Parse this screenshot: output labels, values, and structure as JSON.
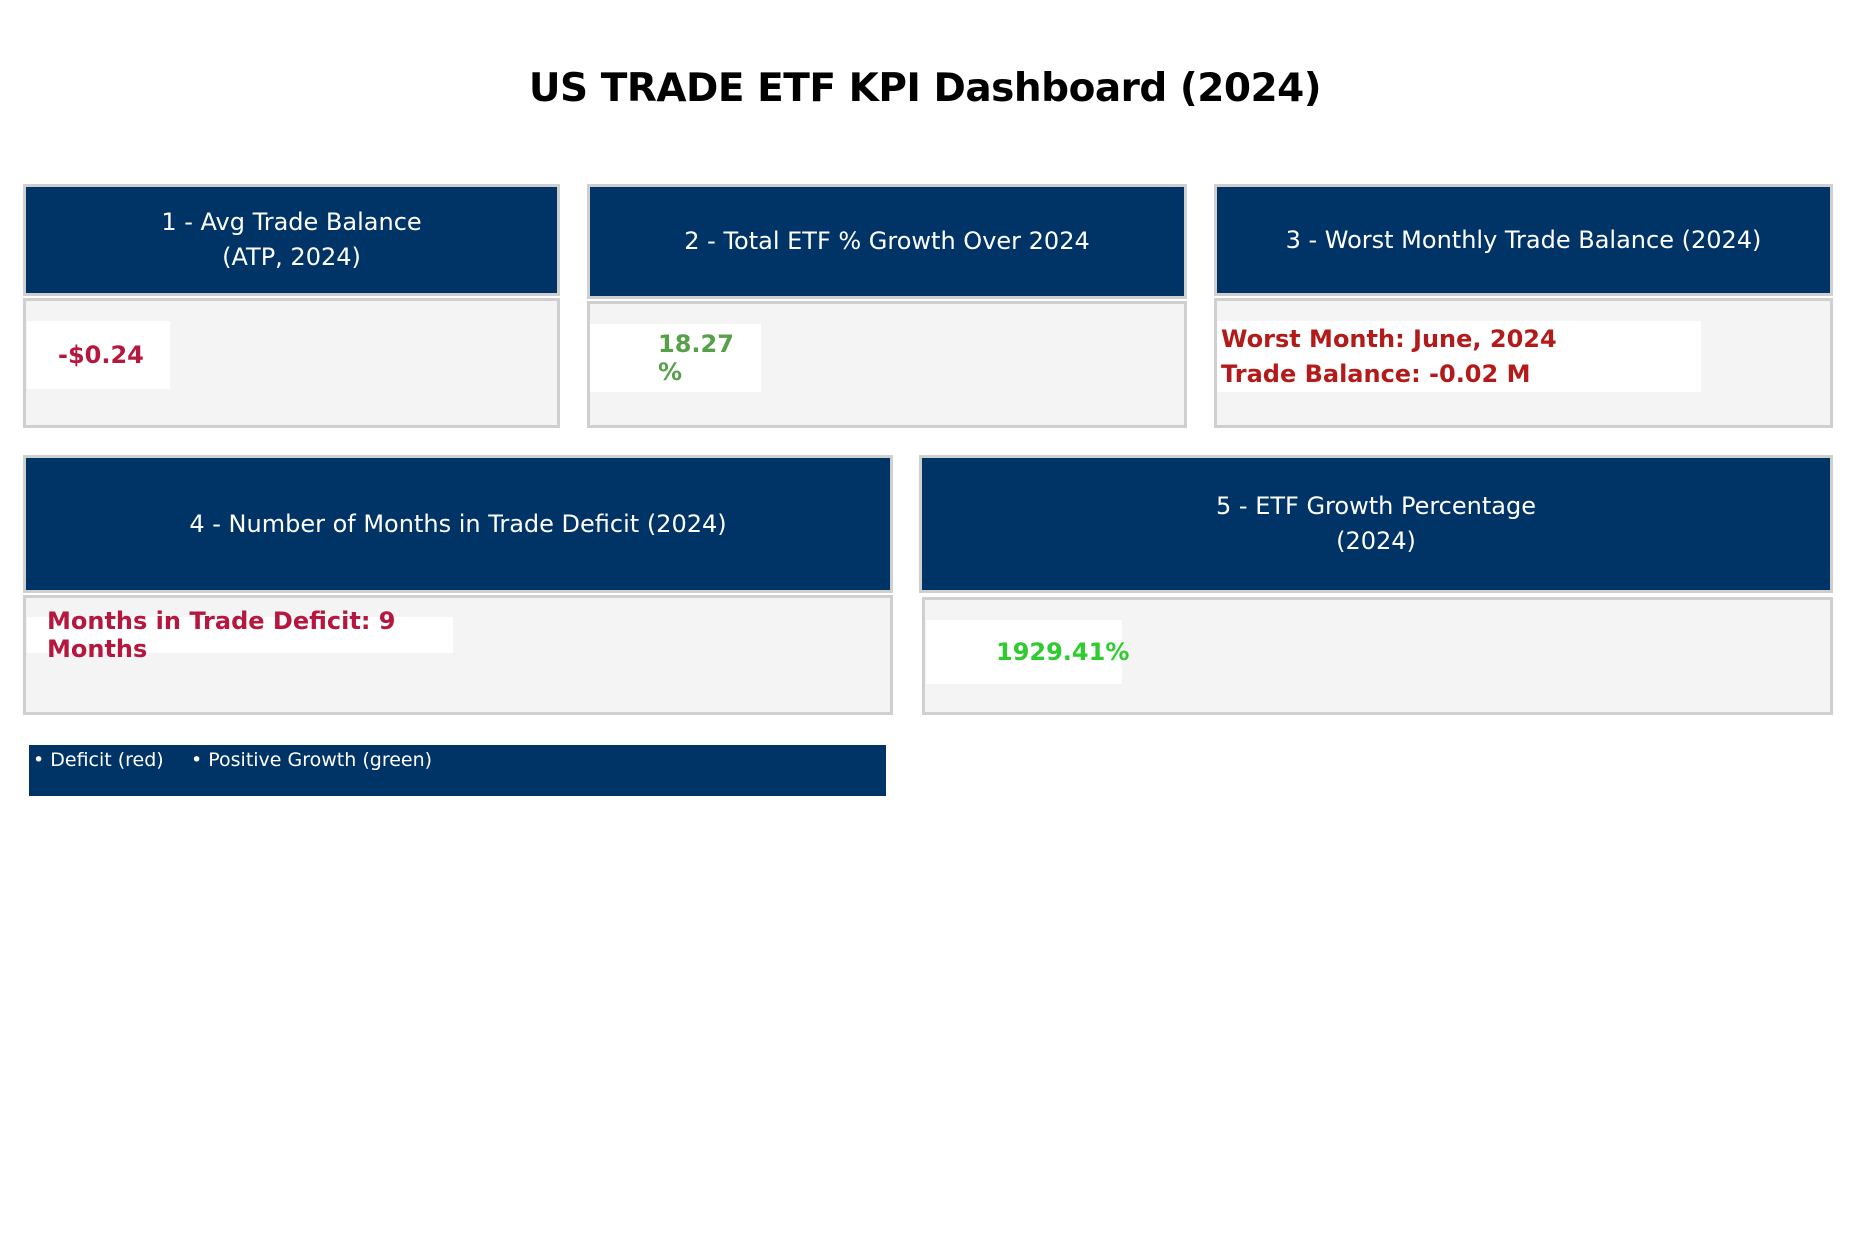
{
  "dashboard": {
    "title": "US TRADE ETF KPI Dashboard (2024)"
  },
  "kpis": [
    {
      "header": "1 - Avg Trade Balance\n(ATP, 2024)",
      "value": "-$0.24",
      "value_color": "#b5173e"
    },
    {
      "header": "2 - Total ETF % Growth Over 2024",
      "value": "18.27 %",
      "value_color": "#56a04a"
    },
    {
      "header": "3 - Worst Monthly Trade Balance (2024)",
      "value_line1": "Worst Month: June, 2024",
      "value_line2": "Trade Balance: -0.02 M",
      "value_color": "#b31b1b"
    },
    {
      "header": "4 - Number of Months in Trade Deficit (2024)",
      "value": "Months in Trade Deficit: 9 Months",
      "value_color": "#b5173e"
    },
    {
      "header": "5 - ETF Growth Percentage\n(2024)",
      "value": "1929.41%",
      "value_color": "#2ecc2e"
    }
  ],
  "legend": {
    "items": [
      {
        "label": "• Deficit (red)"
      },
      {
        "label": "• Positive Growth (green)"
      }
    ]
  },
  "colors": {
    "header_bg": "#003366",
    "panel_bg": "#f4f4f4",
    "panel_border": "#cfcfcf"
  }
}
